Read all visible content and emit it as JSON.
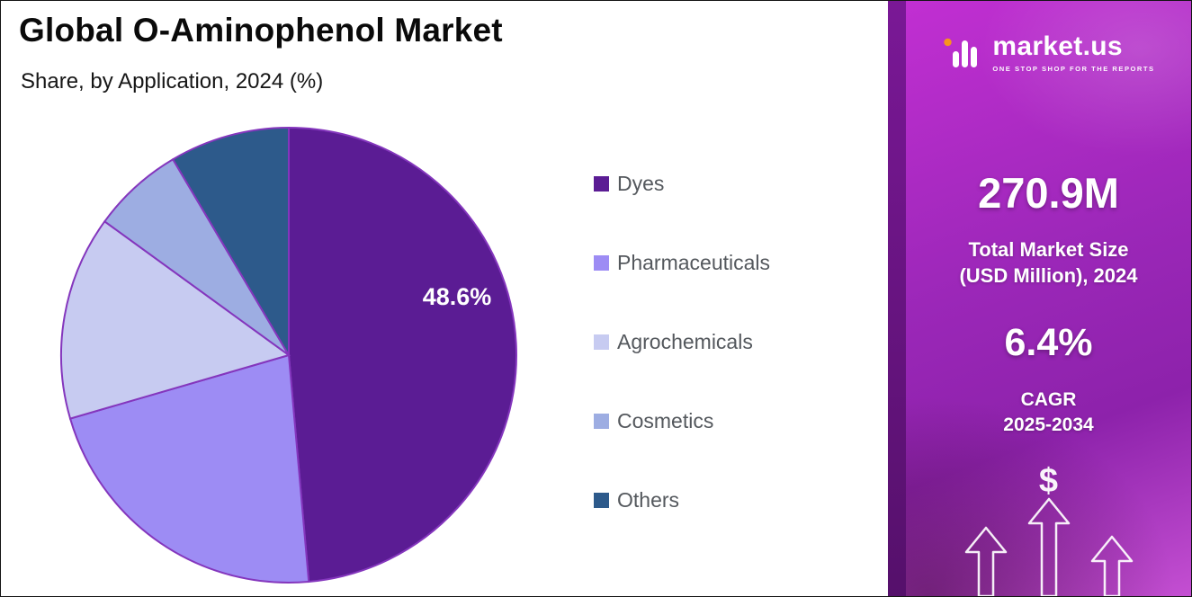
{
  "header": {
    "title": "Global O-Aminophenol Market",
    "subtitle": "Share, by Application, 2024 (%)"
  },
  "chart_data": {
    "type": "pie",
    "title": "Global O-Aminophenol Market",
    "subtitle": "Share, by Application, 2024 (%)",
    "unit": "%",
    "labels": [
      "Dyes",
      "Pharmaceuticals",
      "Agrochemicals",
      "Cosmetics",
      "Others"
    ],
    "values": [
      48.6,
      21.9,
      14.5,
      6.5,
      8.5
    ],
    "colors": [
      "#5b1c94",
      "#9d8cf4",
      "#c7cbf1",
      "#9dade2",
      "#2d5a8b"
    ],
    "data_labels": [
      "48.6%",
      "",
      "",
      "",
      ""
    ],
    "stroke_color": "#8436bd",
    "start_angle_deg": -90,
    "direction": "clockwise",
    "legend_position": "right"
  },
  "side_panel": {
    "brand": {
      "name": "market.us",
      "tagline": "ONE STOP SHOP FOR THE REPORTS",
      "accent_color": "#f7941d"
    },
    "stats": [
      {
        "value": "270.9M",
        "label_lines": [
          "Total Market Size",
          "(USD Million), 2024"
        ]
      },
      {
        "value": "6.4%",
        "label_lines": [
          "CAGR",
          "2025-2034"
        ]
      }
    ],
    "dollar_symbol": "$"
  },
  "palette": {
    "panel_g1": "#c12fd2",
    "panel_g2": "#9b27b8",
    "panel_g3": "#8d22ab",
    "panel_g4": "#c44fd2",
    "strip_top": "#7a1896",
    "strip_bottom": "#55106b"
  }
}
